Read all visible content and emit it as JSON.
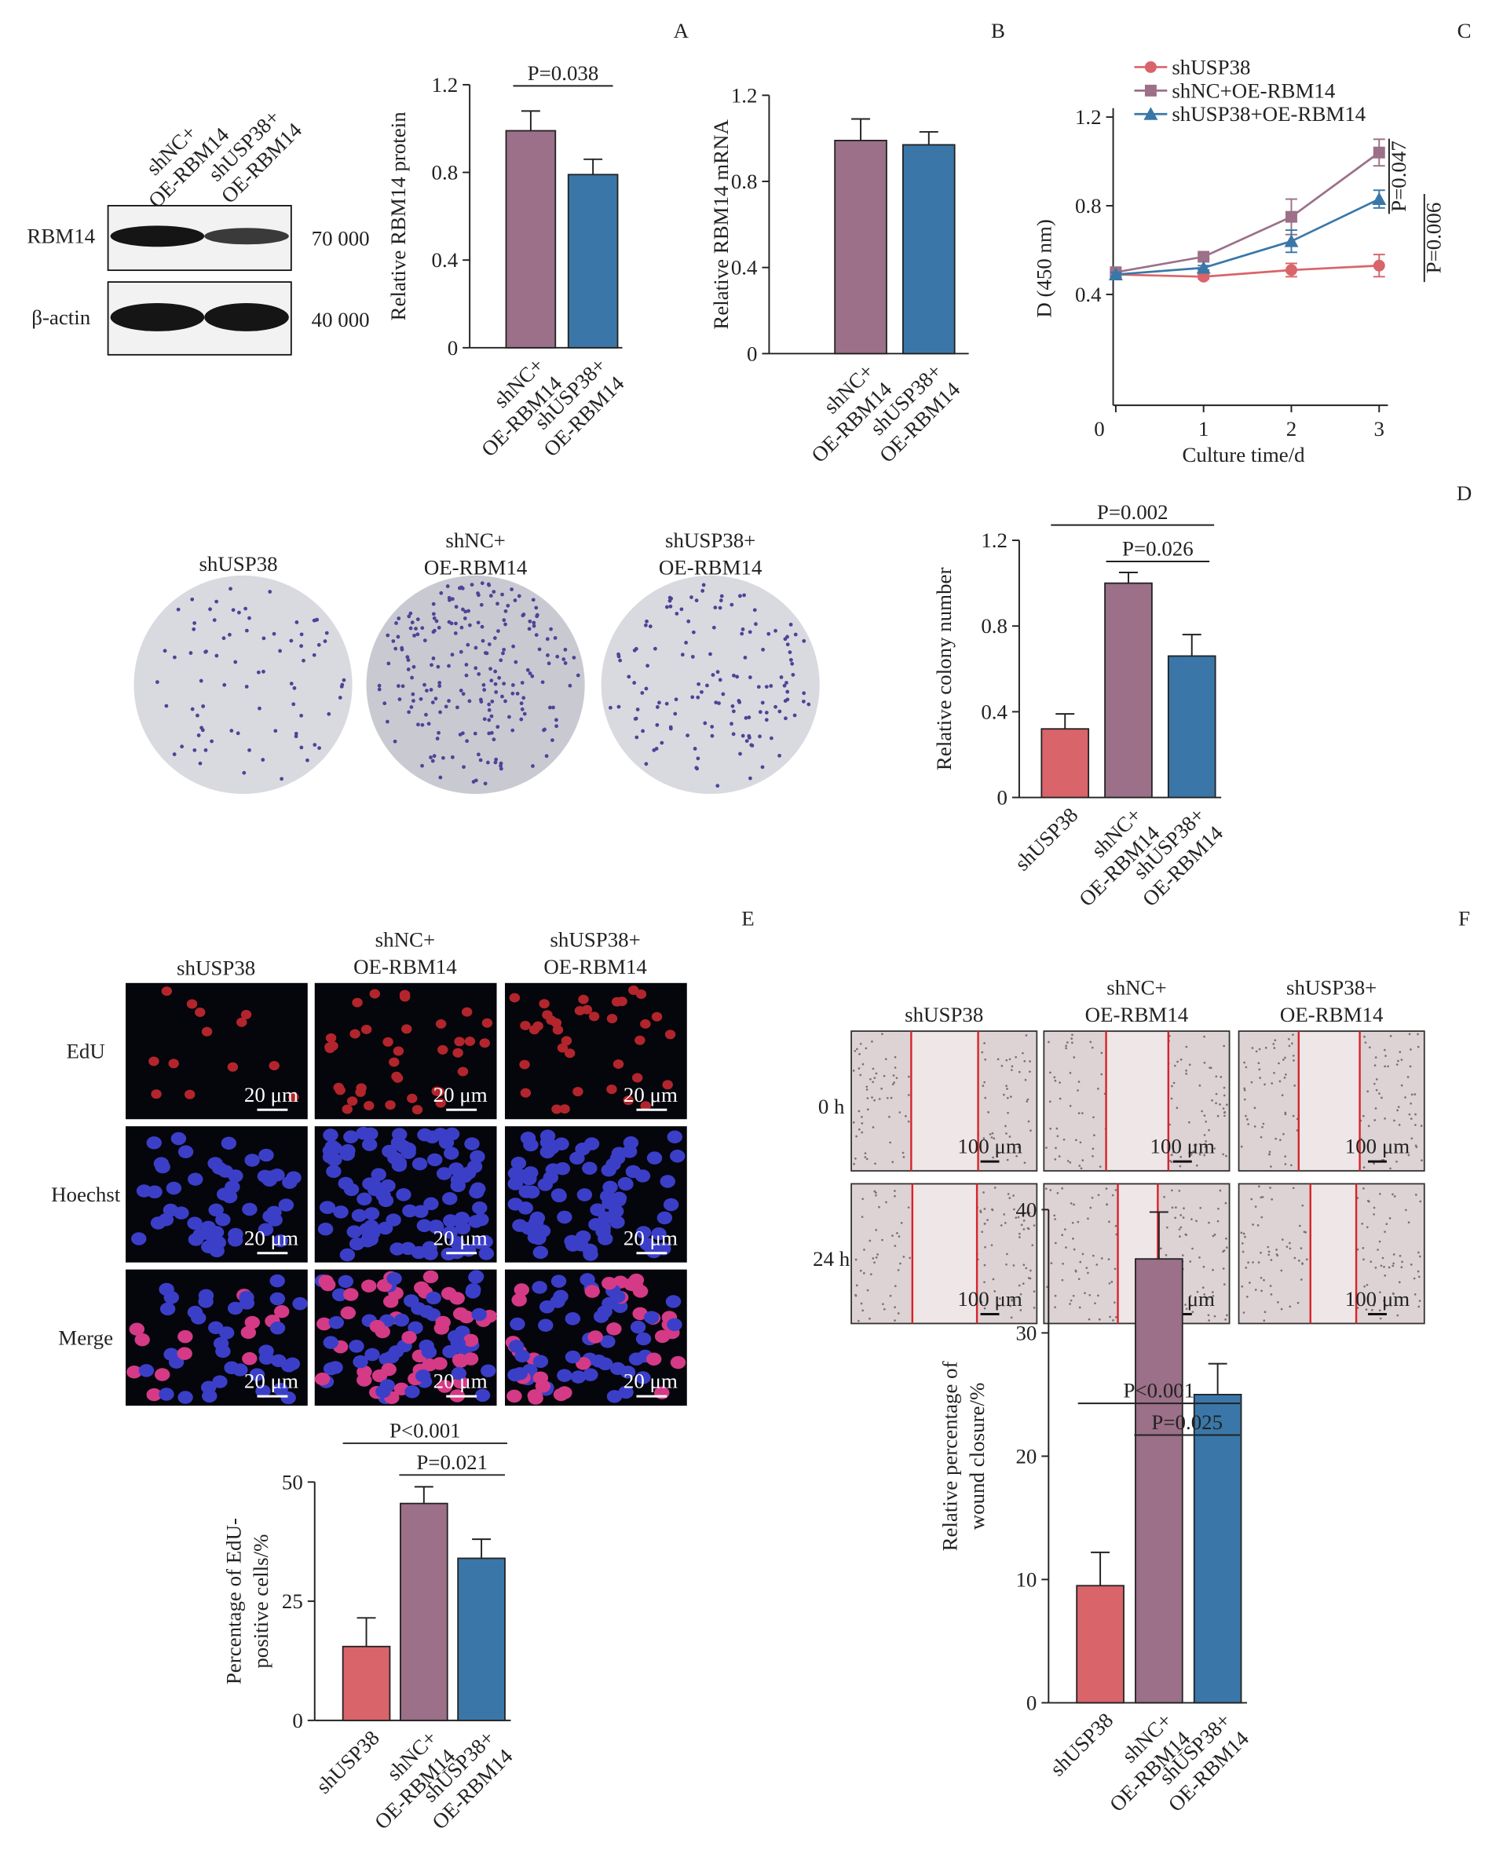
{
  "panel_labels": [
    "A",
    "B",
    "C",
    "D",
    "E",
    "F"
  ],
  "blot": {
    "columns": [
      [
        "shNC+",
        "OE-RBM14"
      ],
      [
        "shUSP38+",
        "OE-RBM14"
      ]
    ],
    "rows": [
      "RBM14",
      "β-actin"
    ],
    "markers": [
      "70 000",
      "40 000"
    ]
  },
  "colony_images": {
    "columns": [
      [
        "shUSP38"
      ],
      [
        "shNC+",
        "OE-RBM14"
      ],
      [
        "shUSP38+",
        "OE-RBM14"
      ]
    ]
  },
  "edu_images": {
    "columns": [
      [
        "shUSP38"
      ],
      [
        "shNC+",
        "OE-RBM14"
      ],
      [
        "shUSP38+",
        "OE-RBM14"
      ]
    ],
    "rows": [
      "EdU",
      "Hoechst",
      "Merge"
    ],
    "scale_bar": "20 μm"
  },
  "wound_images": {
    "columns": [
      [
        "shUSP38"
      ],
      [
        "shNC+",
        "OE-RBM14"
      ],
      [
        "shUSP38+",
        "OE-RBM14"
      ]
    ],
    "rows": [
      "0 h",
      "24 h"
    ],
    "scale_bar": "100 μm"
  },
  "chart_data": [
    {
      "type": "bar",
      "categories": [
        [
          "shNC+",
          "OE-RBM14"
        ],
        [
          "shUSP38+",
          "OE-RBM14"
        ]
      ],
      "values": [
        0.99,
        0.79
      ],
      "errors": [
        0.09,
        0.07
      ],
      "colors": [
        "#9b7088",
        "#3a77a8"
      ],
      "ylim": [
        0,
        1.2
      ],
      "yticks": [
        0,
        0.4,
        0.8,
        1.2
      ],
      "ylabel": [
        "Relative RBM14 protein"
      ],
      "annotations": [
        "P=0.038"
      ]
    },
    {
      "type": "bar",
      "categories": [
        [
          "shNC+",
          "OE-RBM14"
        ],
        [
          "shUSP38+",
          "OE-RBM14"
        ]
      ],
      "values": [
        0.99,
        0.97
      ],
      "errors": [
        0.1,
        0.06
      ],
      "colors": [
        "#9b7088",
        "#3a77a8"
      ],
      "ylim": [
        0,
        1.2
      ],
      "yticks": [
        0,
        0.4,
        0.8,
        1.2
      ],
      "ylabel": [
        "Relative RBM14 mRNA"
      ],
      "annotations": []
    },
    {
      "type": "line",
      "x": [
        0,
        1,
        2,
        3
      ],
      "xlim": [
        -0.03,
        3.1
      ],
      "xticks": [
        0,
        1,
        2,
        3
      ],
      "ylim": [
        -0.1,
        1.24
      ],
      "yticks": [
        0.4,
        0.8,
        1.2
      ],
      "xlabel": "Culture time/d",
      "ylabel": "D (450 nm)",
      "series": [
        {
          "name": "shUSP38",
          "color": "#d9646a",
          "marker": "circle",
          "values": [
            0.49,
            0.48,
            0.51,
            0.53
          ],
          "errors": [
            0.02,
            0.01,
            0.03,
            0.05
          ]
        },
        {
          "name": "shNC+OE-RBM14",
          "color": "#9b7088",
          "marker": "square",
          "values": [
            0.5,
            0.57,
            0.75,
            1.04
          ],
          "errors": [
            0.01,
            0.01,
            0.08,
            0.06
          ]
        },
        {
          "name": "shUSP38+OE-RBM14",
          "color": "#3a77a8",
          "marker": "triangle",
          "values": [
            0.49,
            0.52,
            0.64,
            0.83
          ],
          "errors": [
            0.01,
            0.01,
            0.05,
            0.04
          ]
        }
      ],
      "annotations": [
        "P=0.047",
        "P=0.006"
      ]
    },
    {
      "type": "bar",
      "categories": [
        [
          "shUSP38"
        ],
        [
          "shNC+",
          "OE-RBM14"
        ],
        [
          "shUSP38+",
          "OE-RBM14"
        ]
      ],
      "values": [
        0.32,
        1.0,
        0.66
      ],
      "errors": [
        0.07,
        0.05,
        0.1
      ],
      "colors": [
        "#d9646a",
        "#9b7088",
        "#3a77a8"
      ],
      "ylim": [
        0,
        1.2
      ],
      "yticks": [
        0,
        0.4,
        0.8,
        1.2
      ],
      "ylabel": [
        "Relative colony number"
      ],
      "annotations": [
        "P=0.002",
        "P=0.026"
      ]
    },
    {
      "type": "bar",
      "categories": [
        [
          "shUSP38"
        ],
        [
          "shNC+",
          "OE-RBM14"
        ],
        [
          "shUSP38+",
          "OE-RBM14"
        ]
      ],
      "values": [
        15.5,
        45.5,
        34
      ],
      "errors": [
        6,
        3.5,
        4
      ],
      "colors": [
        "#d9646a",
        "#9b7088",
        "#3a77a8"
      ],
      "ylim": [
        0,
        50
      ],
      "yticks": [
        0,
        25,
        50
      ],
      "ylabel": [
        "Percentage of EdU-",
        "positive cells/%"
      ],
      "annotations": [
        "P<0.001",
        "P=0.021"
      ]
    },
    {
      "type": "bar",
      "categories": [
        [
          "shUSP38"
        ],
        [
          "shNC+",
          "OE-RBM14"
        ],
        [
          "shUSP38+",
          "OE-RBM14"
        ]
      ],
      "values": [
        9.5,
        36,
        25
      ],
      "errors": [
        2.7,
        3.8,
        2.5
      ],
      "colors": [
        "#d9646a",
        "#9b7088",
        "#3a77a8"
      ],
      "ylim": [
        0,
        40
      ],
      "yticks": [
        0,
        10,
        20,
        30,
        40
      ],
      "ylabel": [
        "Relative percentage of",
        "wound closure/%"
      ],
      "annotations": [
        "P<0.001",
        "P=0.025"
      ]
    }
  ]
}
